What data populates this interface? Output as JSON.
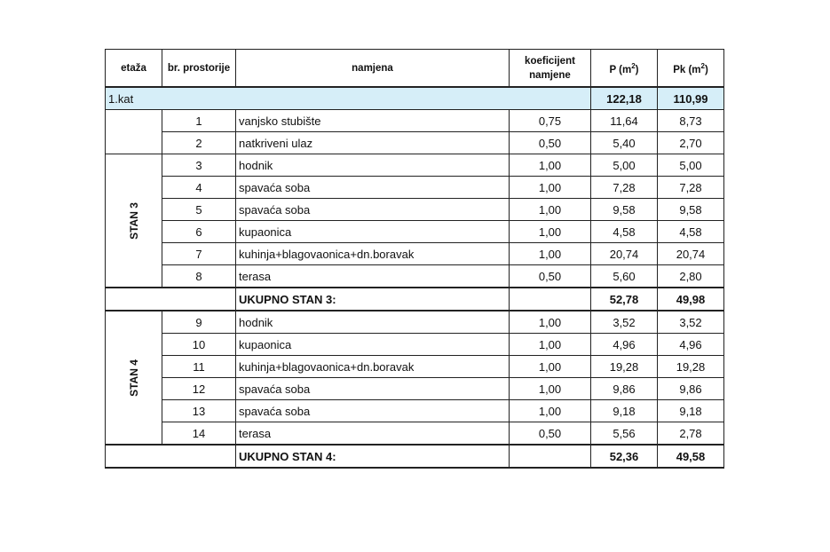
{
  "headers": {
    "etaza": "etaža",
    "br": "br. prostorije",
    "namjena": "namjena",
    "koef_1": "koeficijent",
    "koef_2": "namjene",
    "p": "P (m",
    "pk": "Pk (m",
    "unit_exp": "2",
    ")": ")"
  },
  "floor": {
    "label": "1.kat",
    "p": "122,18",
    "pk": "110,99"
  },
  "groups": [
    {
      "label": "",
      "rows": [
        {
          "n": "1",
          "namjena": "vanjsko stubište",
          "k": "0,75",
          "p": "11,64",
          "pk": "8,73"
        },
        {
          "n": "2",
          "namjena": "natkriveni ulaz",
          "k": "0,50",
          "p": "5,40",
          "pk": "2,70"
        }
      ]
    },
    {
      "label": "STAN 3",
      "rows": [
        {
          "n": "3",
          "namjena": "hodnik",
          "k": "1,00",
          "p": "5,00",
          "pk": "5,00"
        },
        {
          "n": "4",
          "namjena": "spavaća soba",
          "k": "1,00",
          "p": "7,28",
          "pk": "7,28"
        },
        {
          "n": "5",
          "namjena": "spavaća soba",
          "k": "1,00",
          "p": "9,58",
          "pk": "9,58"
        },
        {
          "n": "6",
          "namjena": "kupaonica",
          "k": "1,00",
          "p": "4,58",
          "pk": "4,58"
        },
        {
          "n": "7",
          "namjena": "kuhinja+blagovaonica+dn.boravak",
          "k": "1,00",
          "p": "20,74",
          "pk": "20,74"
        },
        {
          "n": "8",
          "namjena": "terasa",
          "k": "0,50",
          "p": "5,60",
          "pk": "2,80"
        }
      ],
      "total": {
        "label": "UKUPNO STAN 3:",
        "p": "52,78",
        "pk": "49,98"
      }
    },
    {
      "label": "STAN 4",
      "rows": [
        {
          "n": "9",
          "namjena": "hodnik",
          "k": "1,00",
          "p": "3,52",
          "pk": "3,52"
        },
        {
          "n": "10",
          "namjena": "kupaonica",
          "k": "1,00",
          "p": "4,96",
          "pk": "4,96"
        },
        {
          "n": "11",
          "namjena": "kuhinja+blagovaonica+dn.boravak",
          "k": "1,00",
          "p": "19,28",
          "pk": "19,28"
        },
        {
          "n": "12",
          "namjena": "spavaća soba",
          "k": "1,00",
          "p": "9,86",
          "pk": "9,86"
        },
        {
          "n": "13",
          "namjena": "spavaća soba",
          "k": "1,00",
          "p": "9,18",
          "pk": "9,18"
        },
        {
          "n": "14",
          "namjena": "terasa",
          "k": "0,50",
          "p": "5,56",
          "pk": "2,78"
        }
      ],
      "total": {
        "label": "UKUPNO STAN 4:",
        "p": "52,36",
        "pk": "49,58"
      }
    }
  ]
}
